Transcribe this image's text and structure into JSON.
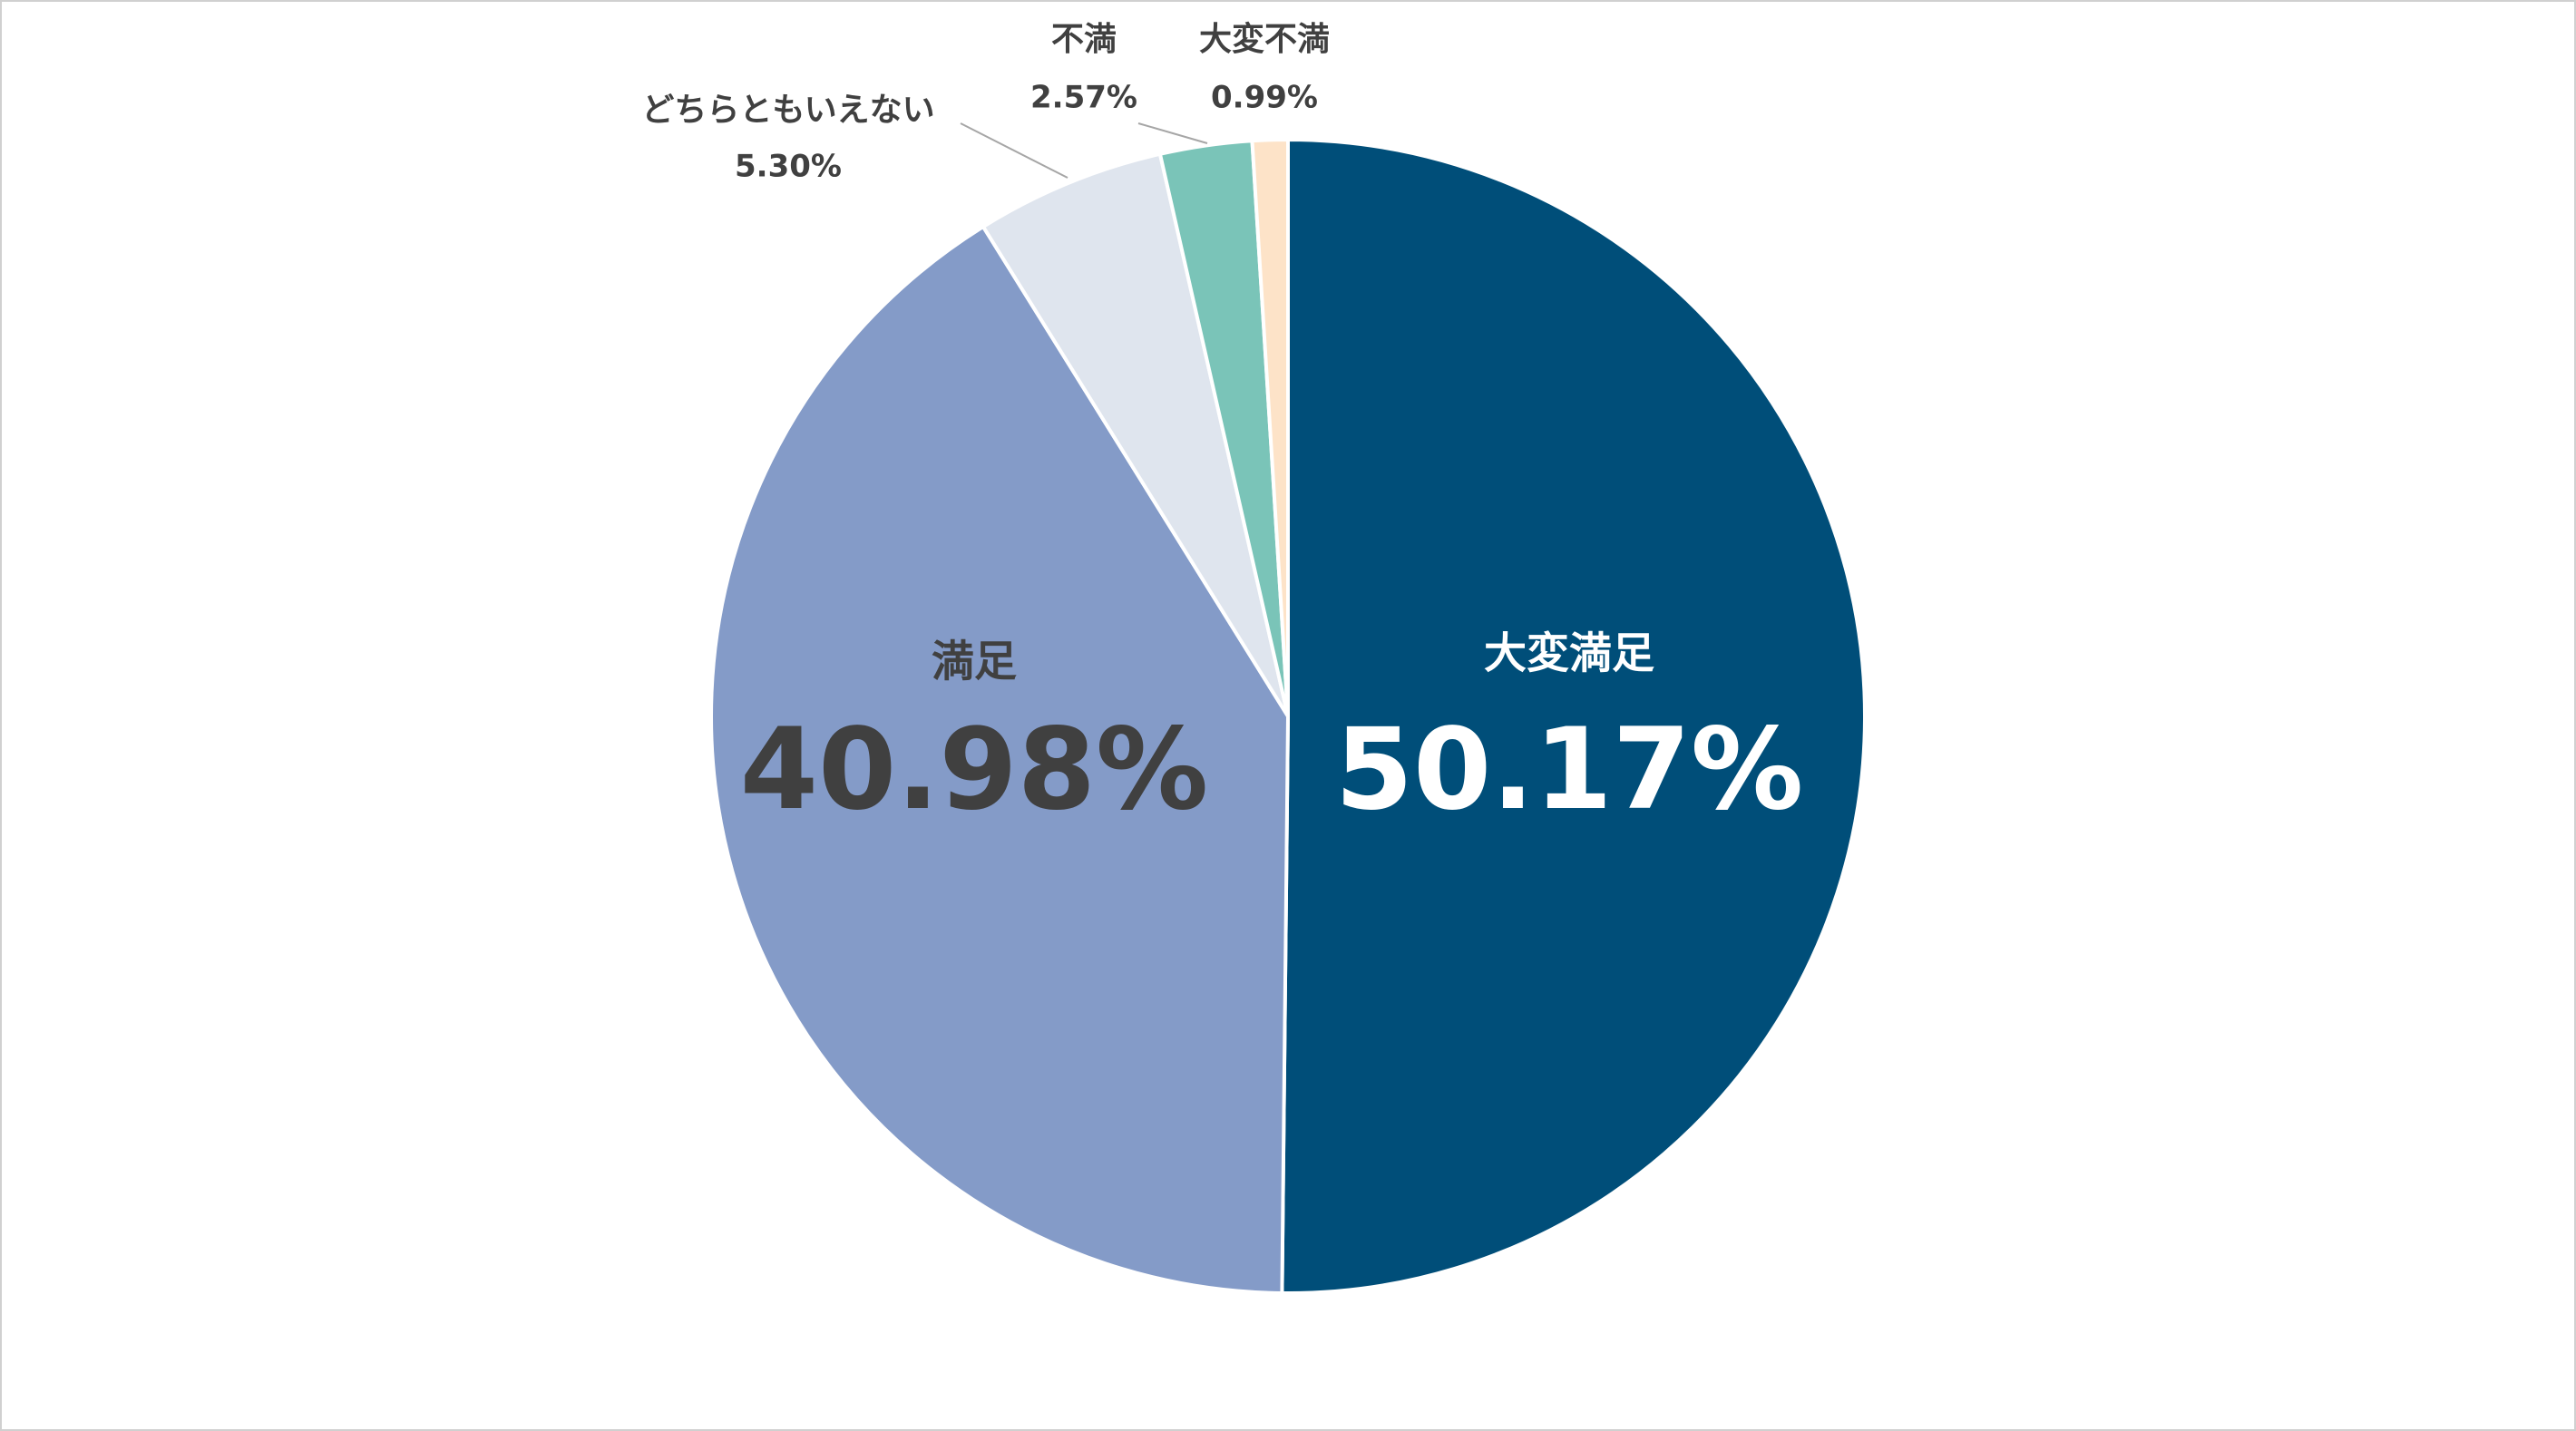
{
  "chart_data": {
    "type": "pie",
    "categories": [
      "大変満足",
      "満足",
      "どちらともいえない",
      "不満",
      "大変不満"
    ],
    "values": [
      50.17,
      40.98,
      5.3,
      2.57,
      0.99
    ],
    "value_labels": [
      "50.17%",
      "40.98%",
      "5.30%",
      "2.57%",
      "0.99%"
    ],
    "colors": [
      "#004e79",
      "#849bc8",
      "#dfe5ee",
      "#7ac4b8",
      "#fde3c8"
    ]
  }
}
